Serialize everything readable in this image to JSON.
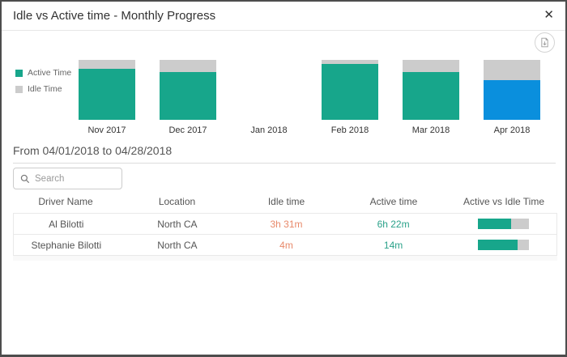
{
  "dialog": {
    "title": "Idle vs Active time - Monthly Progress",
    "close_glyph": "✕"
  },
  "chart_data": {
    "type": "bar",
    "stacked": true,
    "unit": "percent_of_month_total",
    "categories": [
      "Nov 2017",
      "Dec 2017",
      "Jan 2018",
      "Feb 2018",
      "Mar 2018",
      "Apr 2018"
    ],
    "series": [
      {
        "name": "Active Time",
        "values": [
          85,
          80,
          null,
          93,
          80,
          66
        ]
      },
      {
        "name": "Idle Time",
        "values": [
          15,
          20,
          null,
          7,
          20,
          34
        ]
      }
    ],
    "highlight_category": "Apr 2018",
    "colors": {
      "active": "#17a68b",
      "idle": "#cccccc",
      "highlight": "#0a8fdd"
    },
    "legend": [
      {
        "label": "Active Time",
        "color": "#17a68b"
      },
      {
        "label": "Idle Time",
        "color": "#cccccc"
      }
    ],
    "legend_position": "left"
  },
  "period": {
    "label": "From 04/01/2018 to 04/28/2018"
  },
  "search": {
    "placeholder": "Search"
  },
  "table": {
    "columns": [
      "Driver Name",
      "Location",
      "Idle time",
      "Active time",
      "Active vs Idle Time"
    ],
    "rows": [
      {
        "driver": "Al Bilotti",
        "location": "North CA",
        "idle": "3h 31m",
        "active": "6h 22m",
        "active_pct": 65
      },
      {
        "driver": "Stephanie Bilotti",
        "location": "North CA",
        "idle": "4m",
        "active": "14m",
        "active_pct": 78
      }
    ],
    "value_colors": {
      "idle": "#e8896a",
      "active": "#2aa189"
    }
  }
}
